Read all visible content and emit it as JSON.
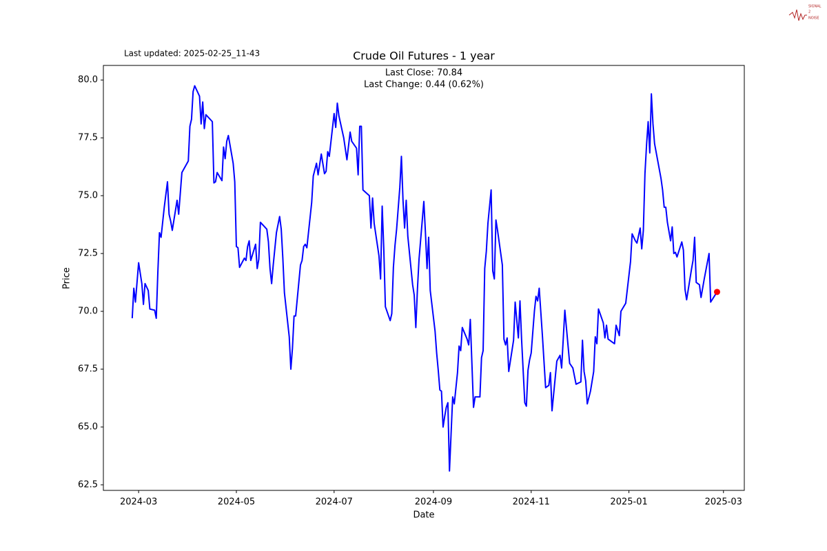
{
  "logo": {
    "lines": [
      "SIGNAL",
      "2",
      "NOISE"
    ]
  },
  "chart_data": {
    "type": "line",
    "title": "Crude Oil Futures - 1 year",
    "updated": "Last updated: 2025-02-25_11-43",
    "annotations": [
      "Last Close: 70.84",
      "Last Change: 0.44 (0.62%)"
    ],
    "x_label": "Date",
    "y_label": "Price",
    "xlim": [
      "2024-02-08",
      "2025-03-14"
    ],
    "xticks": [
      {
        "value": "2024-03-01",
        "label": "2024-03"
      },
      {
        "value": "2024-05-01",
        "label": "2024-05"
      },
      {
        "value": "2024-07-01",
        "label": "2024-07"
      },
      {
        "value": "2024-09-01",
        "label": "2024-09"
      },
      {
        "value": "2024-11-01",
        "label": "2024-11"
      },
      {
        "value": "2025-01-01",
        "label": "2025-01"
      },
      {
        "value": "2025-03-01",
        "label": "2025-03"
      }
    ],
    "ylim": [
      62.26,
      80.63
    ],
    "yticks": [
      62.5,
      {
        "value": 65,
        "label": "65.0"
      },
      67.5,
      {
        "value": 70,
        "label": "70.0"
      },
      72.5,
      {
        "value": 75,
        "label": "75.0"
      },
      77.5,
      {
        "value": 80,
        "label": "80.0"
      }
    ],
    "grid": false,
    "last_marker_color": "red",
    "x": [
      "2024-02-26",
      "2024-02-27",
      "2024-02-28",
      "2024-03-01",
      "2024-03-03",
      "2024-03-04",
      "2024-03-05",
      "2024-03-07",
      "2024-03-08",
      "2024-03-11",
      "2024-03-12",
      "2024-03-13",
      "2024-03-14",
      "2024-03-15",
      "2024-03-17",
      "2024-03-19",
      "2024-03-20",
      "2024-03-21",
      "2024-03-22",
      "2024-03-25",
      "2024-03-26",
      "2024-03-28",
      "2024-04-01",
      "2024-04-02",
      "2024-04-03",
      "2024-04-04",
      "2024-04-05",
      "2024-04-08",
      "2024-04-09",
      "2024-04-10",
      "2024-04-11",
      "2024-04-12",
      "2024-04-16",
      "2024-04-17",
      "2024-04-18",
      "2024-04-19",
      "2024-04-22",
      "2024-04-23",
      "2024-04-24",
      "2024-04-25",
      "2024-04-26",
      "2024-04-29",
      "2024-04-30",
      "2024-05-01",
      "2024-05-02",
      "2024-05-03",
      "2024-05-06",
      "2024-05-07",
      "2024-05-08",
      "2024-05-09",
      "2024-05-10",
      "2024-05-13",
      "2024-05-14",
      "2024-05-15",
      "2024-05-16",
      "2024-05-20",
      "2024-05-21",
      "2024-05-22",
      "2024-05-23",
      "2024-05-24",
      "2024-05-26",
      "2024-05-28",
      "2024-05-29",
      "2024-05-30",
      "2024-05-31",
      "2024-06-03",
      "2024-06-04",
      "2024-06-05",
      "2024-06-06",
      "2024-06-07",
      "2024-06-10",
      "2024-06-11",
      "2024-06-12",
      "2024-06-13",
      "2024-06-14",
      "2024-06-17",
      "2024-06-18",
      "2024-06-20",
      "2024-06-21",
      "2024-06-23",
      "2024-06-25",
      "2024-06-26",
      "2024-06-27",
      "2024-06-28",
      "2024-07-01",
      "2024-07-02",
      "2024-07-03",
      "2024-07-04",
      "2024-07-07",
      "2024-07-09",
      "2024-07-11",
      "2024-07-12",
      "2024-07-15",
      "2024-07-16",
      "2024-07-17",
      "2024-07-18",
      "2024-07-19",
      "2024-07-23",
      "2024-07-24",
      "2024-07-25",
      "2024-07-26",
      "2024-07-29",
      "2024-07-30",
      "2024-07-31",
      "2024-08-01",
      "2024-08-02",
      "2024-08-05",
      "2024-08-06",
      "2024-08-07",
      "2024-08-08",
      "2024-08-09",
      "2024-08-11",
      "2024-08-12",
      "2024-08-13",
      "2024-08-14",
      "2024-08-15",
      "2024-08-16",
      "2024-08-19",
      "2024-08-20",
      "2024-08-21",
      "2024-08-22",
      "2024-08-23",
      "2024-08-26",
      "2024-08-27",
      "2024-08-28",
      "2024-08-29",
      "2024-08-30",
      "2024-09-02",
      "2024-09-03",
      "2024-09-04",
      "2024-09-05",
      "2024-09-06",
      "2024-09-07",
      "2024-09-08",
      "2024-09-09",
      "2024-09-10",
      "2024-09-11",
      "2024-09-12",
      "2024-09-13",
      "2024-09-14",
      "2024-09-16",
      "2024-09-17",
      "2024-09-18",
      "2024-09-19",
      "2024-09-22",
      "2024-09-23",
      "2024-09-24",
      "2024-09-26",
      "2024-09-27",
      "2024-09-30",
      "2024-10-01",
      "2024-10-02",
      "2024-10-03",
      "2024-10-04",
      "2024-10-05",
      "2024-10-07",
      "2024-10-08",
      "2024-10-09",
      "2024-10-10",
      "2024-10-11",
      "2024-10-14",
      "2024-10-15",
      "2024-10-16",
      "2024-10-17",
      "2024-10-18",
      "2024-10-21",
      "2024-10-22",
      "2024-10-24",
      "2024-10-25",
      "2024-10-26",
      "2024-10-28",
      "2024-10-29",
      "2024-10-30",
      "2024-10-31",
      "2024-11-01",
      "2024-11-03",
      "2024-11-04",
      "2024-11-05",
      "2024-11-06",
      "2024-11-08",
      "2024-11-10",
      "2024-11-12",
      "2024-11-13",
      "2024-11-14",
      "2024-11-17",
      "2024-11-19",
      "2024-11-20",
      "2024-11-22",
      "2024-11-25",
      "2024-11-27",
      "2024-11-29",
      "2024-12-02",
      "2024-12-03",
      "2024-12-04",
      "2024-12-05",
      "2024-12-06",
      "2024-12-08",
      "2024-12-10",
      "2024-12-11",
      "2024-12-12",
      "2024-12-13",
      "2024-12-16",
      "2024-12-17",
      "2024-12-18",
      "2024-12-19",
      "2024-12-23",
      "2024-12-24",
      "2024-12-26",
      "2024-12-27",
      "2024-12-30",
      "2025-01-02",
      "2025-01-03",
      "2025-01-05",
      "2025-01-06",
      "2025-01-08",
      "2025-01-09",
      "2025-01-10",
      "2025-01-11",
      "2025-01-12",
      "2025-01-13",
      "2025-01-14",
      "2025-01-15",
      "2025-01-16",
      "2025-01-17",
      "2025-01-21",
      "2025-01-22",
      "2025-01-23",
      "2025-01-24",
      "2025-01-25",
      "2025-01-27",
      "2025-01-28",
      "2025-01-29",
      "2025-01-30",
      "2025-01-31",
      "2025-02-03",
      "2025-02-04",
      "2025-02-05",
      "2025-02-06",
      "2025-02-09",
      "2025-02-10",
      "2025-02-11",
      "2025-02-12",
      "2025-02-14",
      "2025-02-15",
      "2025-02-17",
      "2025-02-20",
      "2025-02-21",
      "2025-02-25"
    ],
    "series": [
      {
        "color": "#0000ff",
        "values": [
          69.7,
          71.0,
          70.4,
          72.1,
          71.2,
          70.3,
          71.2,
          70.9,
          70.1,
          70.05,
          69.7,
          71.7,
          73.4,
          73.2,
          74.5,
          75.6,
          74.2,
          73.9,
          73.5,
          74.8,
          74.2,
          76.0,
          76.5,
          78.0,
          78.3,
          79.5,
          79.75,
          79.3,
          78.1,
          79.05,
          77.9,
          78.5,
          78.2,
          75.55,
          75.6,
          76.0,
          75.65,
          77.1,
          76.6,
          77.35,
          77.6,
          76.4,
          75.6,
          72.8,
          72.75,
          71.9,
          72.3,
          72.2,
          72.8,
          73.05,
          72.2,
          72.9,
          71.85,
          72.25,
          73.85,
          73.55,
          73.0,
          71.85,
          71.2,
          72.0,
          73.4,
          74.1,
          73.55,
          72.3,
          70.8,
          68.9,
          67.5,
          68.4,
          69.8,
          69.8,
          72.0,
          72.2,
          72.8,
          72.9,
          72.75,
          74.7,
          75.85,
          76.4,
          75.9,
          76.8,
          75.95,
          76.05,
          76.9,
          76.7,
          78.55,
          77.95,
          79.0,
          78.45,
          77.5,
          76.55,
          77.75,
          77.35,
          77.05,
          75.9,
          78.0,
          78.0,
          75.25,
          75.0,
          73.6,
          74.9,
          73.8,
          72.4,
          71.4,
          74.55,
          72.7,
          70.2,
          69.6,
          69.9,
          71.9,
          72.85,
          73.55,
          75.35,
          76.7,
          74.8,
          73.6,
          74.8,
          73.25,
          71.15,
          70.7,
          69.3,
          70.95,
          72.25,
          74.75,
          73.4,
          71.85,
          73.2,
          70.9,
          69.15,
          68.2,
          67.45,
          66.6,
          66.55,
          65.0,
          65.45,
          65.85,
          66.05,
          63.1,
          64.7,
          66.3,
          66.0,
          67.35,
          68.5,
          68.3,
          69.3,
          68.8,
          68.55,
          69.65,
          65.85,
          66.3,
          66.3,
          68.0,
          68.3,
          71.85,
          72.6,
          73.8,
          75.25,
          71.75,
          71.4,
          73.95,
          73.5,
          72.0,
          68.8,
          68.55,
          68.85,
          67.4,
          68.75,
          70.4,
          68.85,
          70.45,
          68.8,
          66.05,
          65.9,
          67.45,
          67.9,
          68.2,
          70.0,
          70.65,
          70.45,
          71.0,
          68.95,
          66.7,
          66.8,
          67.35,
          65.7,
          67.85,
          68.1,
          67.55,
          70.05,
          67.75,
          67.55,
          66.85,
          66.95,
          68.75,
          67.4,
          67.0,
          66.0,
          66.55,
          67.4,
          68.9,
          68.6,
          70.1,
          69.5,
          68.85,
          69.4,
          68.8,
          68.6,
          69.4,
          68.95,
          70.0,
          70.35,
          72.15,
          73.35,
          73.05,
          72.95,
          73.6,
          72.7,
          73.5,
          75.95,
          77.2,
          78.2,
          76.85,
          79.4,
          78.1,
          77.25,
          75.75,
          75.25,
          74.5,
          74.5,
          73.85,
          73.05,
          73.65,
          72.5,
          72.55,
          72.35,
          73.0,
          72.65,
          70.95,
          70.5,
          71.8,
          72.2,
          73.2,
          71.25,
          71.15,
          70.6,
          71.4,
          72.5,
          70.4,
          70.84
        ]
      }
    ]
  }
}
